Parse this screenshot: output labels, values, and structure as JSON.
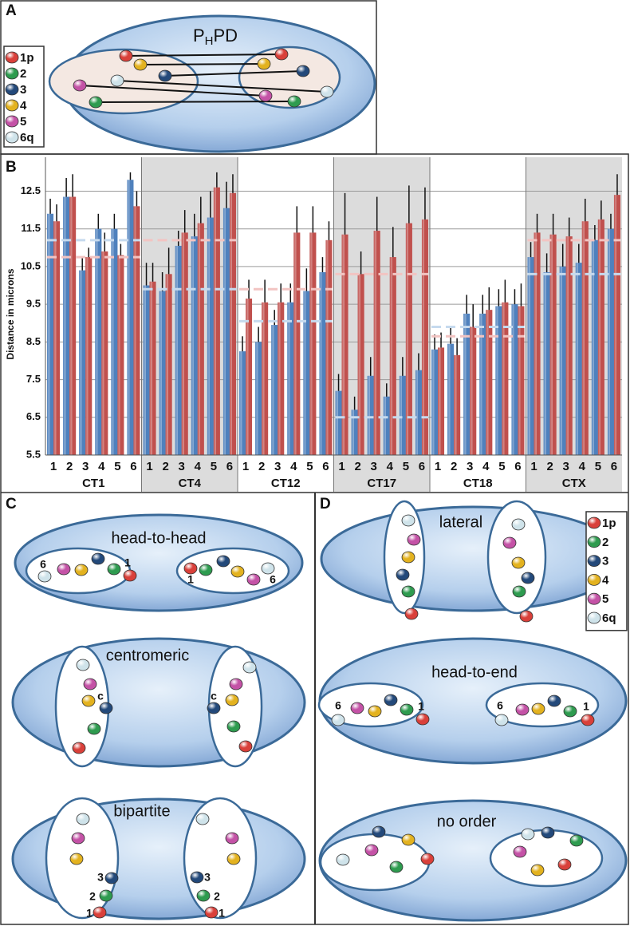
{
  "panel_labels": [
    "A",
    "B",
    "C",
    "D"
  ],
  "panel_a": {
    "title": [
      "P",
      "H",
      "PD"
    ],
    "legend": [
      {
        "label": "1p",
        "color": "#d9403a"
      },
      {
        "label": "2",
        "color": "#2e9b4f"
      },
      {
        "label": "3",
        "color": "#23497a"
      },
      {
        "label": "4",
        "color": "#e3b21f"
      },
      {
        "label": "5",
        "color": "#c452a6"
      },
      {
        "label": "6q",
        "color": "#cfe3ea"
      }
    ]
  },
  "chart_data": {
    "type": "bar",
    "y_label": "Distance in microns",
    "ylim": [
      5.5,
      13.4
    ],
    "yticks": [
      5.5,
      6.5,
      7.5,
      8.5,
      9.5,
      10.5,
      11.5,
      12.5
    ],
    "grid": true,
    "groups": [
      {
        "name": "CT1",
        "shaded": false,
        "categories": [
          "1",
          "2",
          "3",
          "4",
          "5",
          "6"
        ],
        "series": [
          {
            "color": "#4f81bd",
            "values": [
              11.9,
              12.35,
              10.4,
              11.5,
              11.5,
              12.8
            ],
            "errors": [
              0.4,
              0.5,
              0.35,
              0.4,
              0.4,
              0.2
            ]
          },
          {
            "color": "#c0504d",
            "values": [
              11.7,
              12.35,
              10.75,
              10.9,
              10.8,
              12.1
            ],
            "errors": [
              0.45,
              0.6,
              0.25,
              0.5,
              0.3,
              0.4
            ]
          }
        ],
        "reference_lines": [
          {
            "value": 11.2,
            "color": "#c6daee"
          },
          {
            "value": 10.75,
            "color": "#f2c4c2"
          }
        ]
      },
      {
        "name": "CT4",
        "shaded": true,
        "categories": [
          "1",
          "2",
          "3",
          "4",
          "5",
          "6"
        ],
        "series": [
          {
            "color": "#4f81bd",
            "values": [
              10.0,
              9.85,
              11.05,
              11.3,
              11.8,
              12.05
            ],
            "errors": [
              0.6,
              0.5,
              0.4,
              0.6,
              0.7,
              0.7
            ]
          },
          {
            "color": "#c0504d",
            "values": [
              10.1,
              10.3,
              11.4,
              11.65,
              12.6,
              12.45
            ],
            "errors": [
              0.5,
              0.7,
              0.6,
              0.7,
              0.4,
              0.5
            ]
          }
        ],
        "reference_lines": [
          {
            "value": 11.2,
            "color": "#f2c4c2"
          },
          {
            "value": 9.9,
            "color": "#c6daee"
          }
        ]
      },
      {
        "name": "CT12",
        "shaded": false,
        "categories": [
          "1",
          "2",
          "3",
          "4",
          "5",
          "6"
        ],
        "series": [
          {
            "color": "#4f81bd",
            "values": [
              8.25,
              8.5,
              8.95,
              9.55,
              9.85,
              10.35
            ],
            "errors": [
              0.4,
              0.4,
              0.4,
              0.5,
              0.6,
              0.4
            ]
          },
          {
            "color": "#c0504d",
            "values": [
              9.65,
              9.55,
              9.55,
              11.4,
              11.4,
              11.2
            ],
            "errors": [
              0.5,
              0.6,
              0.5,
              0.7,
              0.7,
              0.5
            ]
          }
        ],
        "reference_lines": [
          {
            "value": 9.9,
            "color": "#f2c4c2"
          },
          {
            "value": 9.05,
            "color": "#c6daee"
          }
        ]
      },
      {
        "name": "CT17",
        "shaded": true,
        "categories": [
          "1",
          "2",
          "3",
          "4",
          "5",
          "6"
        ],
        "series": [
          {
            "color": "#4f81bd",
            "values": [
              7.2,
              6.7,
              7.6,
              7.05,
              7.6,
              7.75
            ],
            "errors": [
              0.45,
              0.35,
              0.5,
              0.35,
              0.5,
              0.45
            ]
          },
          {
            "color": "#c0504d",
            "values": [
              11.35,
              10.3,
              11.45,
              10.75,
              11.65,
              11.75
            ],
            "errors": [
              1.1,
              0.6,
              0.9,
              0.8,
              1.0,
              0.85
            ]
          }
        ],
        "reference_lines": [
          {
            "value": 10.3,
            "color": "#f2c4c2"
          },
          {
            "value": 6.5,
            "color": "#c6daee"
          }
        ]
      },
      {
        "name": "CT18",
        "shaded": false,
        "categories": [
          "1",
          "2",
          "3",
          "4",
          "5",
          "6"
        ],
        "series": [
          {
            "color": "#4f81bd",
            "values": [
              8.3,
              8.45,
              9.25,
              9.25,
              9.45,
              9.5
            ],
            "errors": [
              0.4,
              0.45,
              0.5,
              0.5,
              0.45,
              0.4
            ]
          },
          {
            "color": "#c0504d",
            "values": [
              8.35,
              8.15,
              8.9,
              9.35,
              9.55,
              9.45
            ],
            "errors": [
              0.4,
              0.45,
              0.6,
              0.6,
              0.6,
              0.6
            ]
          }
        ],
        "reference_lines": [
          {
            "value": 8.9,
            "color": "#c6daee"
          },
          {
            "value": 8.65,
            "color": "#f2c4c2"
          }
        ]
      },
      {
        "name": "CTX",
        "shaded": true,
        "categories": [
          "1",
          "2",
          "3",
          "4",
          "5",
          "6"
        ],
        "series": [
          {
            "color": "#4f81bd",
            "values": [
              10.75,
              10.35,
              10.5,
              10.6,
              11.2,
              11.5
            ],
            "errors": [
              0.4,
              0.5,
              0.6,
              0.5,
              0.4,
              0.4
            ]
          },
          {
            "color": "#c0504d",
            "values": [
              11.4,
              11.35,
              11.3,
              11.7,
              11.75,
              12.4
            ],
            "errors": [
              0.5,
              0.55,
              0.5,
              0.6,
              0.5,
              0.55
            ]
          }
        ],
        "reference_lines": [
          {
            "value": 11.2,
            "color": "#f2c4c2"
          },
          {
            "value": 10.3,
            "color": "#c6daee"
          }
        ]
      }
    ]
  },
  "panel_c": {
    "diagrams": [
      {
        "title": "head-to-head",
        "labels": [
          "6",
          "1",
          "1",
          "6"
        ]
      },
      {
        "title": "centromeric",
        "labels": [
          "c",
          "c"
        ]
      },
      {
        "title": "bipartite",
        "labels": [
          "3",
          "2",
          "1",
          "3",
          "2",
          "1"
        ]
      }
    ]
  },
  "panel_d": {
    "legend": [
      {
        "label": "1p",
        "color": "#d9403a"
      },
      {
        "label": "2",
        "color": "#2e9b4f"
      },
      {
        "label": "3",
        "color": "#23497a"
      },
      {
        "label": "4",
        "color": "#e3b21f"
      },
      {
        "label": "5",
        "color": "#c452a6"
      },
      {
        "label": "6q",
        "color": "#cfe3ea"
      }
    ],
    "diagrams": [
      {
        "title": "lateral"
      },
      {
        "title": "head-to-end",
        "labels": [
          "6",
          "1",
          "6",
          "1"
        ]
      },
      {
        "title": "no order"
      }
    ]
  }
}
